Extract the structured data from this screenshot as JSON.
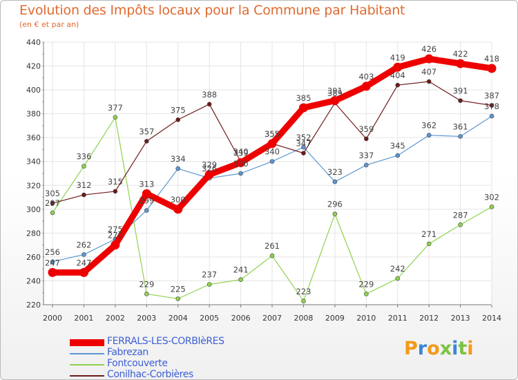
{
  "title": "Evolution des Impôts locaux pour la Commune par Habitant",
  "subtitle": "(en € et par an)",
  "logo_text": "Proxiti",
  "logo_colors": [
    "#f39a1a",
    "#3a86d8",
    "#f39a1a",
    "#7cc242",
    "#3a86d8",
    "#7cc242",
    "#f39a1a"
  ],
  "chart_data": {
    "type": "line",
    "title": "Evolution des Impôts locaux pour la Commune par Habitant",
    "subtitle": "(en € et par an)",
    "x": [
      "2000",
      "2001",
      "2002",
      "2003",
      "2004",
      "2005",
      "2006",
      "2007",
      "2008",
      "2009",
      "2010",
      "2011",
      "2012",
      "2013",
      "2014"
    ],
    "ylim": [
      220,
      440
    ],
    "yticks": [
      220,
      240,
      260,
      280,
      300,
      320,
      340,
      360,
      380,
      400,
      420,
      440
    ],
    "grid": true,
    "legend_position": "bottom-left",
    "series": [
      {
        "name": "FERRALS-LES-CORBIèRES",
        "color": "#ee0000",
        "values": [
          247,
          247,
          270,
          313,
          300,
          329,
          339,
          355,
          385,
          391,
          403,
          419,
          426,
          422,
          418
        ]
      },
      {
        "name": "Fabrezan",
        "color": "#5b96d2",
        "values": [
          256,
          262,
          275,
          299,
          334,
          326,
          330,
          340,
          352,
          323,
          337,
          345,
          362,
          361,
          378
        ]
      },
      {
        "name": "Fontcouverte",
        "color": "#8ed24e",
        "values": [
          297,
          336,
          377,
          229,
          225,
          237,
          241,
          261,
          223,
          296,
          229,
          242,
          271,
          287,
          302
        ]
      },
      {
        "name": "Conilhac-Corbières",
        "color": "#6e1a1a",
        "values": [
          305,
          312,
          315,
          357,
          375,
          388,
          340,
          355,
          347,
          389,
          359,
          404,
          407,
          391,
          387
        ]
      }
    ]
  }
}
